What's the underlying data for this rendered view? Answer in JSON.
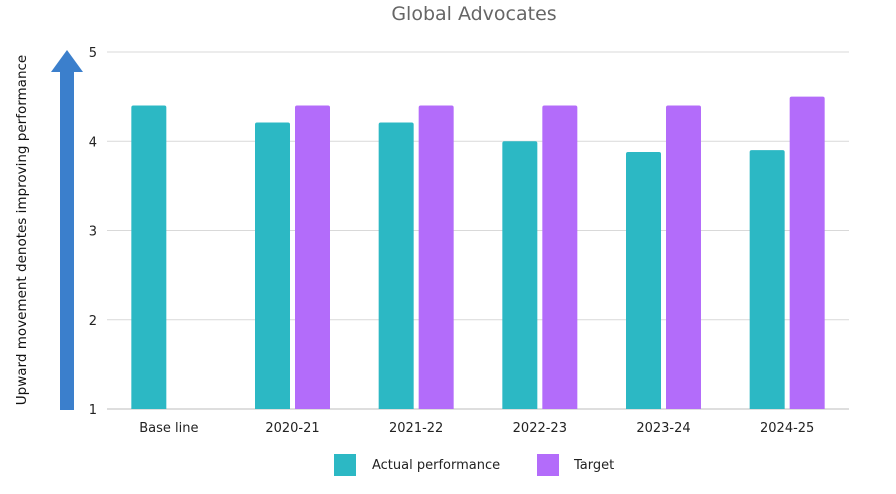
{
  "chart_data": {
    "type": "bar",
    "title": "Global Advocates",
    "ylabel": "Upward movement denotes improving performance",
    "xlabel": "",
    "categories": [
      "Base line",
      "2020-21",
      "2021-22",
      "2022-23",
      "2023-24",
      "2024-25"
    ],
    "series": [
      {
        "name": "Actual performance",
        "color": "#2cb8c4",
        "values": [
          4.4,
          4.21,
          4.21,
          4.0,
          3.88,
          3.9
        ]
      },
      {
        "name": "Target",
        "color": "#b36cfa",
        "values": [
          null,
          4.4,
          4.4,
          4.4,
          4.4,
          4.5
        ]
      }
    ],
    "ylim": [
      1,
      5
    ],
    "yticks": [
      1,
      2,
      3,
      4,
      5
    ],
    "grid": true,
    "legend": "bottom",
    "arrow_color": "#3b7fcc",
    "arrow_icon": "up-arrow-icon"
  }
}
